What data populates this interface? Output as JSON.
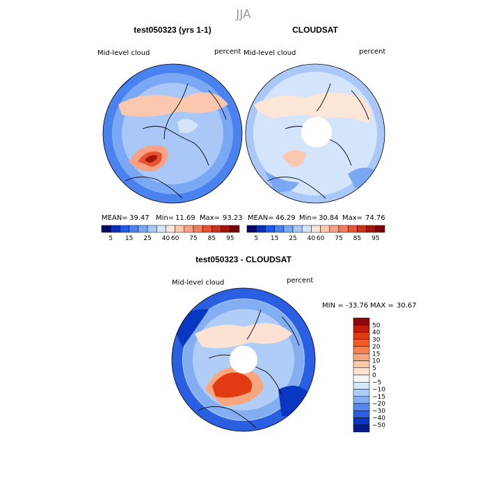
{
  "chart_data": {
    "type": "contour-map",
    "title": "JJA",
    "variable": "Mid-level cloud",
    "units": "percent",
    "panels": [
      {
        "id": "model",
        "title": "test050323 (yrs 1-1)",
        "stats": {
          "mean_label": "MEAN=",
          "mean": "39.47",
          "min_label": "Min=",
          "min": "11.69",
          "max_label": "Max=",
          "max": "93.23"
        },
        "colorbar_ticks": [
          "5",
          "15",
          "25",
          "40",
          "60",
          "75",
          "85",
          "95"
        ],
        "colorbar_colors": [
          "#08086b",
          "#0c2fb8",
          "#1f5ae8",
          "#4a82f0",
          "#7ba8f5",
          "#a9c8f7",
          "#d4e5fb",
          "#fbe6d8",
          "#fbc7ae",
          "#f7a285",
          "#f27c5c",
          "#e65434",
          "#cf3018",
          "#a61608",
          "#7a0605"
        ],
        "features": [
          {
            "lat": 62,
            "lon": 100,
            "value": 85
          },
          {
            "lat": 66,
            "lon": 88,
            "value": 60
          },
          {
            "lat": 55,
            "lon": 140,
            "value": 55
          },
          {
            "lat": 52,
            "lon": 200,
            "value": 18
          },
          {
            "lat": 60,
            "lon": -30,
            "value": 12
          }
        ]
      },
      {
        "id": "obs",
        "title": "CLOUDSAT",
        "stats": {
          "mean_label": "MEAN=",
          "mean": "46.29",
          "min_label": "Min=",
          "min": "30.84",
          "max_label": "Max=",
          "max": "74.76"
        },
        "colorbar_ticks": [
          "5",
          "15",
          "25",
          "40",
          "60",
          "75",
          "85",
          "95"
        ],
        "colorbar_colors": [
          "#08086b",
          "#0c2fb8",
          "#1f5ae8",
          "#4a82f0",
          "#7ba8f5",
          "#a9c8f7",
          "#d4e5fb",
          "#fbe6d8",
          "#fbc7ae",
          "#f7a285",
          "#f27c5c",
          "#e65434",
          "#cf3018",
          "#a61608",
          "#7a0605"
        ],
        "features": [
          {
            "lat": 60,
            "lon": 100,
            "value": 58
          },
          {
            "lat": 62,
            "lon": 160,
            "value": 56
          },
          {
            "lat": 55,
            "lon": 30,
            "value": 52
          },
          {
            "lat": 55,
            "lon": 250,
            "value": 40
          }
        ]
      },
      {
        "id": "diff",
        "title": "test050323 - CLOUDSAT",
        "stats_text": {
          "min_label": "MIN =",
          "min": "-33.76",
          "max_label": "MAX =",
          "max": "30.67"
        },
        "colorbar_ticks": [
          "50",
          "40",
          "30",
          "20",
          "15",
          "10",
          "5",
          "0",
          "−5",
          "−10",
          "−15",
          "−20",
          "−30",
          "−40",
          "−50"
        ],
        "colorbar_colors": [
          "#8a0808",
          "#c41a0a",
          "#e23a12",
          "#f25a28",
          "#f7824f",
          "#f9a67e",
          "#fbc8ad",
          "#fbe2d3",
          "#f5f5f5",
          "#d6e6fb",
          "#b0cdf7",
          "#84aef2",
          "#5688ec",
          "#2a5fe2",
          "#0a37c2",
          "#061a8c"
        ],
        "features": [
          {
            "lat": 64,
            "lon": 100,
            "value": 28
          },
          {
            "lat": 55,
            "lon": 80,
            "value": 22
          },
          {
            "lat": 50,
            "lon": 200,
            "value": -30
          },
          {
            "lat": 60,
            "lon": -40,
            "value": -25
          },
          {
            "lat": 58,
            "lon": 160,
            "value": 10
          }
        ]
      }
    ]
  }
}
